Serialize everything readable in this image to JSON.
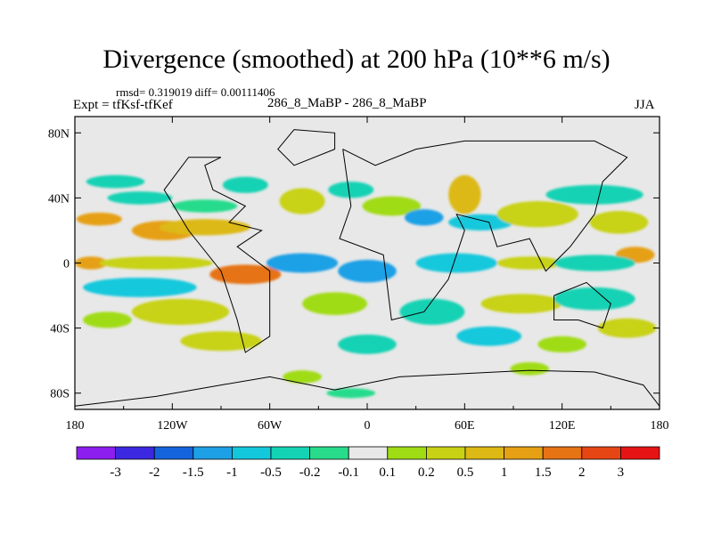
{
  "chart_data": {
    "type": "heatmap",
    "title": "Divergence (smoothed) at 200 hPa (10**6 m/s)",
    "stats_text": "rmsd= 0.319019 diff= 0.00111406",
    "left_label": "Expt = tfKsf-tfKef",
    "center_label": "286_8_MaBP - 286_8_MaBP",
    "right_label": "JJA",
    "x_ticks": [
      {
        "value": -180,
        "label": "180"
      },
      {
        "value": -120,
        "label": "120W"
      },
      {
        "value": -60,
        "label": "60W"
      },
      {
        "value": 0,
        "label": "0"
      },
      {
        "value": 60,
        "label": "60E"
      },
      {
        "value": 120,
        "label": "120E"
      },
      {
        "value": 180,
        "label": "180"
      }
    ],
    "y_ticks": [
      {
        "value": 80,
        "label": "80N"
      },
      {
        "value": 40,
        "label": "40N"
      },
      {
        "value": 0,
        "label": "0"
      },
      {
        "value": -40,
        "label": "40S"
      },
      {
        "value": -80,
        "label": "80S"
      }
    ],
    "xlim": [
      -180,
      180
    ],
    "ylim": [
      -90,
      90
    ],
    "colorbar": {
      "colors": [
        "#8c1eef",
        "#3c28e0",
        "#1464dc",
        "#1ea0e6",
        "#14c8dc",
        "#14d2b4",
        "#28dc8c",
        "#e8e8e8",
        "#a0dc14",
        "#c8d214",
        "#dcb914",
        "#e6a014",
        "#e67314",
        "#e64614",
        "#e61414"
      ],
      "labels": [
        "-3",
        "-2",
        "-1.5",
        "-1",
        "-0.5",
        "-0.2",
        "-0.1",
        "0.1",
        "0.2",
        "0.5",
        "1",
        "1.5",
        "2",
        "3"
      ]
    },
    "blobs": [
      {
        "lon": -165,
        "lat": 27,
        "rlon": 14,
        "rlat": 4,
        "level": 11
      },
      {
        "lon": -125,
        "lat": 20,
        "rlon": 20,
        "rlat": 6,
        "level": 11
      },
      {
        "lon": -100,
        "lat": 22,
        "rlon": 28,
        "rlat": 5,
        "level": 10
      },
      {
        "lon": -140,
        "lat": 40,
        "rlon": 20,
        "rlat": 4,
        "level": 5
      },
      {
        "lon": -100,
        "lat": 35,
        "rlon": 20,
        "rlat": 4,
        "level": 6
      },
      {
        "lon": -40,
        "lat": 38,
        "rlon": 14,
        "rlat": 8,
        "level": 9
      },
      {
        "lon": -155,
        "lat": 50,
        "rlon": 18,
        "rlat": 4,
        "level": 5
      },
      {
        "lon": -75,
        "lat": 48,
        "rlon": 14,
        "rlat": 5,
        "level": 5
      },
      {
        "lon": -10,
        "lat": 45,
        "rlon": 14,
        "rlat": 5,
        "level": 5
      },
      {
        "lon": 15,
        "lat": 35,
        "rlon": 18,
        "rlat": 6,
        "level": 8
      },
      {
        "lon": 35,
        "lat": 28,
        "rlon": 12,
        "rlat": 5,
        "level": 3
      },
      {
        "lon": 70,
        "lat": 25,
        "rlon": 20,
        "rlat": 5,
        "level": 4
      },
      {
        "lon": 60,
        "lat": 42,
        "rlon": 10,
        "rlat": 12,
        "level": 10
      },
      {
        "lon": 105,
        "lat": 30,
        "rlon": 25,
        "rlat": 8,
        "level": 9
      },
      {
        "lon": 140,
        "lat": 42,
        "rlon": 30,
        "rlat": 6,
        "level": 5
      },
      {
        "lon": 155,
        "lat": 25,
        "rlon": 18,
        "rlat": 7,
        "level": 9
      },
      {
        "lon": 165,
        "lat": 5,
        "rlon": 12,
        "rlat": 5,
        "level": 11
      },
      {
        "lon": -170,
        "lat": 0,
        "rlon": 10,
        "rlat": 4,
        "level": 11
      },
      {
        "lon": -130,
        "lat": 0,
        "rlon": 35,
        "rlat": 4,
        "level": 9
      },
      {
        "lon": -75,
        "lat": -7,
        "rlon": 22,
        "rlat": 6,
        "level": 12
      },
      {
        "lon": -40,
        "lat": 0,
        "rlon": 22,
        "rlat": 6,
        "level": 3
      },
      {
        "lon": 0,
        "lat": -5,
        "rlon": 18,
        "rlat": 7,
        "level": 3
      },
      {
        "lon": 55,
        "lat": 0,
        "rlon": 25,
        "rlat": 6,
        "level": 4
      },
      {
        "lon": 100,
        "lat": 0,
        "rlon": 20,
        "rlat": 4,
        "level": 9
      },
      {
        "lon": 140,
        "lat": 0,
        "rlon": 25,
        "rlat": 5,
        "level": 5
      },
      {
        "lon": -140,
        "lat": -15,
        "rlon": 35,
        "rlat": 6,
        "level": 4
      },
      {
        "lon": -115,
        "lat": -30,
        "rlon": 30,
        "rlat": 8,
        "level": 9
      },
      {
        "lon": -160,
        "lat": -35,
        "rlon": 15,
        "rlat": 5,
        "level": 8
      },
      {
        "lon": -20,
        "lat": -25,
        "rlon": 20,
        "rlat": 7,
        "level": 8
      },
      {
        "lon": 40,
        "lat": -30,
        "rlon": 20,
        "rlat": 8,
        "level": 5
      },
      {
        "lon": 95,
        "lat": -25,
        "rlon": 25,
        "rlat": 6,
        "level": 9
      },
      {
        "lon": 140,
        "lat": -22,
        "rlon": 25,
        "rlat": 7,
        "level": 5
      },
      {
        "lon": 160,
        "lat": -40,
        "rlon": 18,
        "rlat": 6,
        "level": 9
      },
      {
        "lon": -90,
        "lat": -48,
        "rlon": 25,
        "rlat": 6,
        "level": 9
      },
      {
        "lon": 0,
        "lat": -50,
        "rlon": 18,
        "rlat": 6,
        "level": 5
      },
      {
        "lon": 75,
        "lat": -45,
        "rlon": 20,
        "rlat": 6,
        "level": 4
      },
      {
        "lon": 120,
        "lat": -50,
        "rlon": 15,
        "rlat": 5,
        "level": 8
      },
      {
        "lon": -40,
        "lat": -70,
        "rlon": 12,
        "rlat": 4,
        "level": 8
      },
      {
        "lon": 100,
        "lat": -65,
        "rlon": 12,
        "rlat": 4,
        "level": 8
      },
      {
        "lon": -10,
        "lat": -80,
        "rlon": 15,
        "rlat": 3,
        "level": 6
      }
    ],
    "coast": [
      [
        [
          -90,
          65
        ],
        [
          -100,
          60
        ],
        [
          -95,
          45
        ],
        [
          -75,
          35
        ],
        [
          -85,
          25
        ],
        [
          -65,
          20
        ],
        [
          -80,
          10
        ],
        [
          -60,
          -5
        ],
        [
          -60,
          -45
        ],
        [
          -75,
          -55
        ],
        [
          -80,
          -35
        ],
        [
          -90,
          -5
        ],
        [
          -110,
          20
        ],
        [
          -125,
          45
        ],
        [
          -110,
          65
        ],
        [
          -90,
          65
        ]
      ],
      [
        [
          -15,
          70
        ],
        [
          -10,
          35
        ],
        [
          -17,
          15
        ],
        [
          10,
          5
        ],
        [
          15,
          -35
        ],
        [
          35,
          -30
        ],
        [
          50,
          -10
        ],
        [
          60,
          20
        ],
        [
          55,
          30
        ],
        [
          75,
          25
        ],
        [
          80,
          10
        ],
        [
          100,
          15
        ],
        [
          110,
          -5
        ],
        [
          125,
          10
        ],
        [
          140,
          30
        ],
        [
          145,
          50
        ],
        [
          160,
          65
        ],
        [
          140,
          75
        ],
        [
          60,
          75
        ],
        [
          30,
          70
        ],
        [
          5,
          60
        ],
        [
          -15,
          70
        ]
      ],
      [
        [
          115,
          -20
        ],
        [
          135,
          -12
        ],
        [
          150,
          -25
        ],
        [
          145,
          -40
        ],
        [
          130,
          -35
        ],
        [
          115,
          -35
        ],
        [
          115,
          -20
        ]
      ],
      [
        [
          -180,
          -88
        ],
        [
          -130,
          -82
        ],
        [
          -90,
          -75
        ],
        [
          -60,
          -70
        ],
        [
          -20,
          -78
        ],
        [
          20,
          -70
        ],
        [
          60,
          -68
        ],
        [
          100,
          -66
        ],
        [
          140,
          -67
        ],
        [
          170,
          -75
        ],
        [
          180,
          -88
        ]
      ],
      [
        [
          -45,
          82
        ],
        [
          -20,
          80
        ],
        [
          -20,
          70
        ],
        [
          -45,
          60
        ],
        [
          -55,
          70
        ],
        [
          -45,
          82
        ]
      ]
    ]
  }
}
